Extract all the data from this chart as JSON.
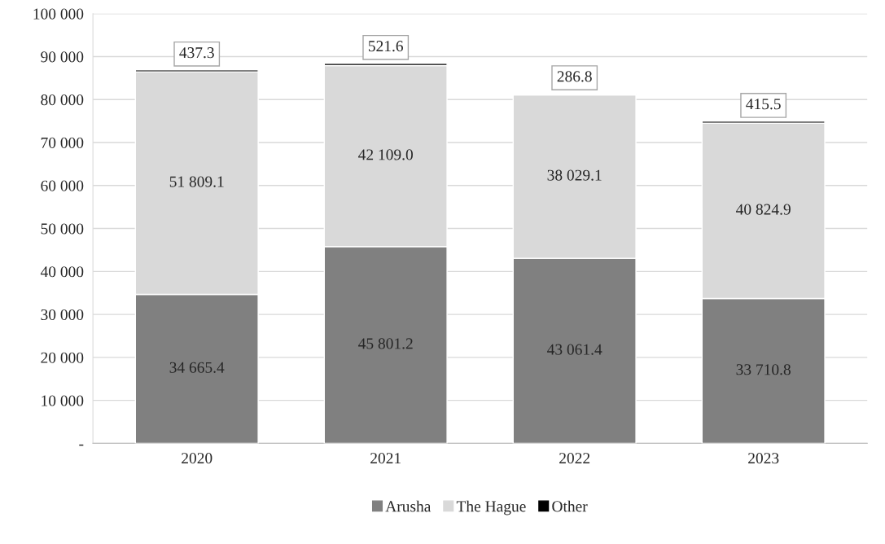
{
  "chart_data": {
    "type": "bar",
    "stacked": true,
    "categories": [
      "2020",
      "2021",
      "2022",
      "2023"
    ],
    "series": [
      {
        "name": "Arusha",
        "color": "#808080",
        "values": [
          34665.4,
          45801.2,
          43061.4,
          33710.8
        ],
        "value_labels": [
          "34 665.4",
          "45 801.2",
          "43 061.4",
          "33 710.8"
        ]
      },
      {
        "name": "The Hague",
        "color": "#d9d9d9",
        "values": [
          51809.1,
          42109.0,
          38029.1,
          40824.9
        ],
        "value_labels": [
          "51 809.1",
          "42 109.0",
          "38 029.1",
          "40 824.9"
        ]
      },
      {
        "name": "Other",
        "color": "#000000",
        "values": [
          437.3,
          521.6,
          286.8,
          415.5
        ],
        "value_labels": [
          "437.3",
          "521.6",
          "286.8",
          "415.5"
        ]
      }
    ],
    "ylim": [
      0,
      100000
    ],
    "yticks": [
      {
        "value": 0,
        "label": "-"
      },
      {
        "value": 10000,
        "label": "10 000"
      },
      {
        "value": 20000,
        "label": "20 000"
      },
      {
        "value": 30000,
        "label": "30 000"
      },
      {
        "value": 40000,
        "label": "40 000"
      },
      {
        "value": 50000,
        "label": "50 000"
      },
      {
        "value": 60000,
        "label": "60 000"
      },
      {
        "value": 70000,
        "label": "70 000"
      },
      {
        "value": 80000,
        "label": "80 000"
      },
      {
        "value": 90000,
        "label": "90 000"
      },
      {
        "value": 100000,
        "label": "100 000"
      }
    ],
    "grid": "y",
    "legend": "bottom"
  }
}
